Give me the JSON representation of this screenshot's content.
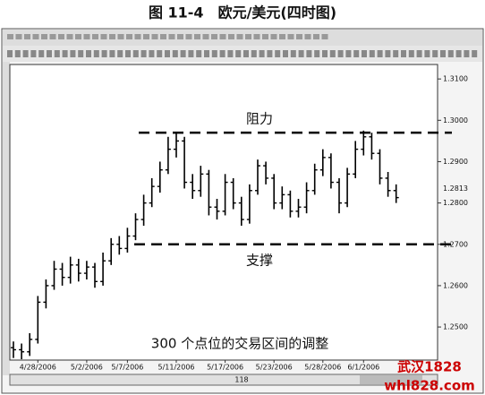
{
  "chart_data": {
    "type": "ohlc",
    "title": "图 11-4　欧元/美元(四时图)",
    "categories": [
      null,
      null,
      null,
      "4/28/2006",
      null,
      null,
      null,
      null,
      null,
      "5/2/2006",
      null,
      null,
      null,
      null,
      "5/7/2006",
      null,
      null,
      null,
      null,
      null,
      "5/11/2006",
      null,
      null,
      null,
      null,
      null,
      "5/17/2006",
      null,
      null,
      null,
      null,
      null,
      "5/23/2006",
      null,
      null,
      null,
      null,
      null,
      "5/28/2006",
      null,
      null,
      null,
      null,
      "6/1/2006",
      null,
      null,
      null,
      null
    ],
    "open": [
      1.245,
      1.2445,
      1.244,
      1.247,
      1.256,
      1.26,
      1.264,
      1.262,
      1.265,
      1.263,
      1.2645,
      1.261,
      1.266,
      1.27,
      1.269,
      1.272,
      1.276,
      1.28,
      1.284,
      1.288,
      1.293,
      1.295,
      1.285,
      1.283,
      1.287,
      1.279,
      1.278,
      1.285,
      1.28,
      1.276,
      1.283,
      1.289,
      1.286,
      1.28,
      1.282,
      1.278,
      1.279,
      1.283,
      1.288,
      1.291,
      1.285,
      1.28,
      1.287,
      1.293,
      1.296,
      1.292,
      1.286,
      1.283
    ],
    "high": [
      1.2465,
      1.246,
      1.2485,
      1.2575,
      1.2615,
      1.266,
      1.2655,
      1.267,
      1.2665,
      1.266,
      1.2655,
      1.268,
      1.2715,
      1.272,
      1.274,
      1.2775,
      1.282,
      1.286,
      1.29,
      1.296,
      1.297,
      1.296,
      1.287,
      1.289,
      1.288,
      1.281,
      1.287,
      1.286,
      1.2815,
      1.2845,
      1.2905,
      1.29,
      1.287,
      1.284,
      1.283,
      1.281,
      1.285,
      1.2895,
      1.293,
      1.292,
      1.286,
      1.2885,
      1.295,
      1.2975,
      1.297,
      1.293,
      1.2875,
      1.2845
    ],
    "low": [
      1.2425,
      1.2422,
      1.243,
      1.246,
      1.2545,
      1.259,
      1.26,
      1.2605,
      1.261,
      1.2615,
      1.2595,
      1.26,
      1.265,
      1.2675,
      1.268,
      1.271,
      1.2745,
      1.279,
      1.2825,
      1.287,
      1.291,
      1.2835,
      1.281,
      1.2815,
      1.277,
      1.276,
      1.277,
      1.2785,
      1.2745,
      1.275,
      1.282,
      1.2845,
      1.2785,
      1.2785,
      1.2765,
      1.2765,
      1.2775,
      1.282,
      1.2865,
      1.2835,
      1.2775,
      1.279,
      1.286,
      1.2915,
      1.2905,
      1.2845,
      1.2815,
      1.28
    ],
    "close": [
      1.2445,
      1.244,
      1.247,
      1.256,
      1.26,
      1.264,
      1.262,
      1.265,
      1.263,
      1.2645,
      1.261,
      1.266,
      1.27,
      1.269,
      1.272,
      1.276,
      1.28,
      1.284,
      1.288,
      1.293,
      1.295,
      1.285,
      1.283,
      1.287,
      1.279,
      1.278,
      1.285,
      1.28,
      1.276,
      1.283,
      1.289,
      1.286,
      1.28,
      1.282,
      1.278,
      1.279,
      1.283,
      1.288,
      1.291,
      1.285,
      1.28,
      1.287,
      1.293,
      1.296,
      1.292,
      1.286,
      1.283,
      1.2813
    ],
    "color": "#000000",
    "ylim": [
      1.242,
      1.3135
    ],
    "yticks": [
      {
        "value": 1.25,
        "label": "1.2500"
      },
      {
        "value": 1.26,
        "label": "1.2600"
      },
      {
        "value": 1.27,
        "label": "1.2700"
      },
      {
        "value": 1.28,
        "label": "1.2800"
      },
      {
        "value": 1.29,
        "label": "1.2900"
      },
      {
        "value": 1.3,
        "label": "1.3000"
      },
      {
        "value": 1.31,
        "label": "1.3100"
      }
    ],
    "resistance": {
      "label": "阻力",
      "value": 1.297
    },
    "support": {
      "label": "支撑",
      "value": 1.27
    },
    "annotation": "300 个点位的交易区间的调整",
    "scrollbar_label": "118",
    "watermark": [
      "武汉1828",
      "whl828.com"
    ]
  }
}
